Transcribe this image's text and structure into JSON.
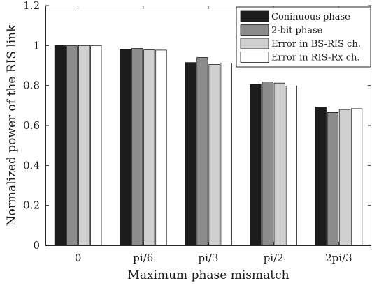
{
  "chart_data": {
    "type": "bar",
    "xlabel": "Maximum phase mismatch",
    "ylabel": "Normalized power of the RIS link",
    "ylim": [
      0,
      1.2
    ],
    "yticks": [
      "0",
      "0.2",
      "0.4",
      "0.6",
      "0.8",
      "1",
      "1.2"
    ],
    "categories": [
      "0",
      "pi/6",
      "pi/3",
      "pi/2",
      "2pi/3"
    ],
    "series": [
      {
        "name": "Coninuous phase",
        "color": "#1c1c1c",
        "values": [
          1.0,
          0.98,
          0.915,
          0.805,
          0.692
        ]
      },
      {
        "name": "2-bit phase",
        "color": "#8c8c8c",
        "values": [
          1.0,
          0.985,
          0.94,
          0.818,
          0.665
        ]
      },
      {
        "name": "Error in BS-RIS ch.",
        "color": "#d0d0d0",
        "values": [
          1.0,
          0.978,
          0.905,
          0.812,
          0.68
        ]
      },
      {
        "name": "Error in RIS-Rx ch.",
        "color": "#ffffff",
        "values": [
          1.0,
          0.977,
          0.912,
          0.797,
          0.684
        ]
      }
    ],
    "legend_position": "top-right",
    "grid": false
  }
}
